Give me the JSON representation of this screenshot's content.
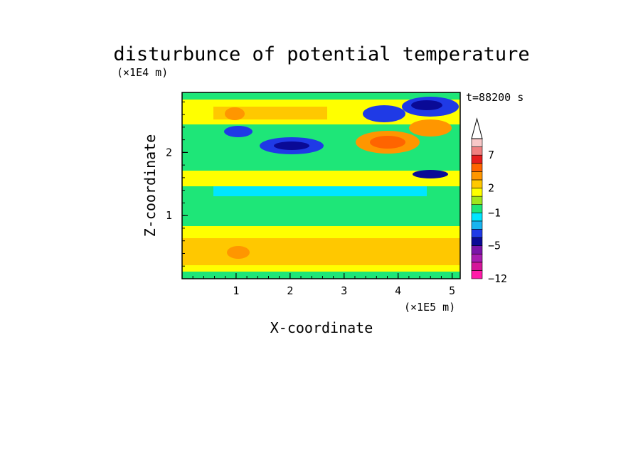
{
  "chart_data": {
    "type": "heatmap",
    "title": "disturbunce of potential temperature",
    "xlabel": "X-coordinate",
    "ylabel": "Z-coordinate",
    "x_unit": "(×1E5 m)",
    "y_unit": "(×1E4 m)",
    "time_label": "t=88200 s",
    "xlim": [
      0,
      5.15
    ],
    "ylim": [
      0,
      2.95
    ],
    "x_ticks": [
      1,
      2,
      3,
      4,
      5
    ],
    "y_ticks": [
      1,
      2
    ],
    "grid": false,
    "legend": "colorbar right",
    "colorbar": {
      "levels": [
        -12,
        -10,
        -8,
        -6,
        -5,
        -4,
        -3,
        -2,
        -1,
        0,
        1,
        2,
        3,
        4,
        5,
        7,
        8,
        10
      ],
      "tick_labels": [
        "-12",
        "-5",
        "-1",
        "2",
        "7"
      ],
      "tick_values": [
        -12,
        -5,
        -1,
        2,
        7
      ],
      "colors": [
        "#ff1aa8",
        "#d41699",
        "#a81cb0",
        "#7a14a8",
        "#0a0a96",
        "#1f3ae6",
        "#19b4f0",
        "#00e6ff",
        "#1ee678",
        "#a0e61e",
        "#ffff00",
        "#ffc800",
        "#ff9600",
        "#ff6400",
        "#e61e1e",
        "#f08080",
        "#f8c8c8"
      ],
      "extend_top_color": "#ffffff"
    }
  }
}
